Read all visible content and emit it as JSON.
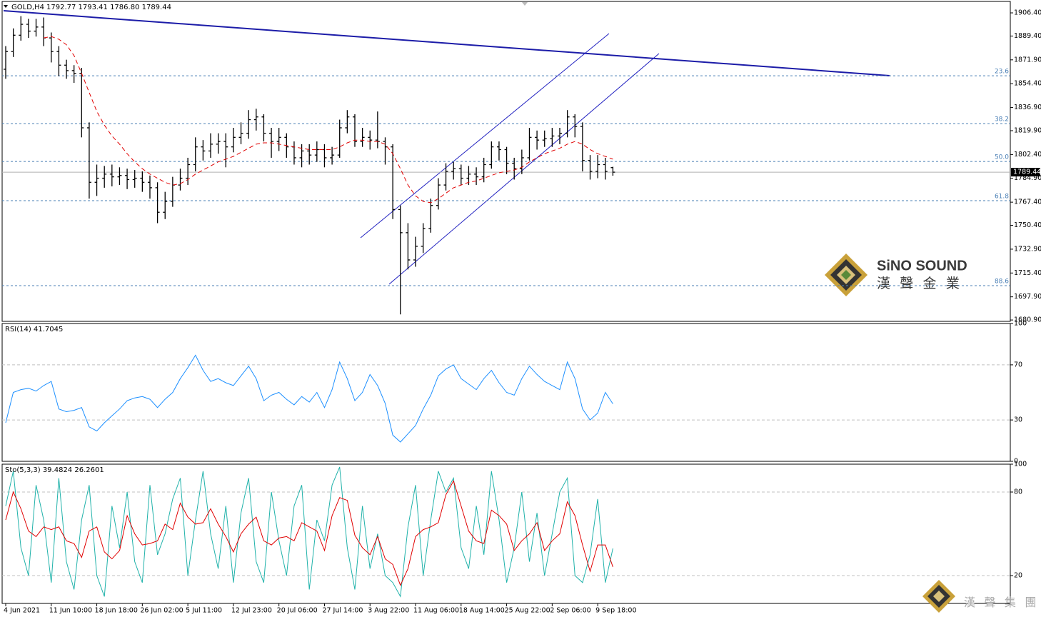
{
  "chart_data": [
    {
      "type": "candlestick",
      "title": "GOLD,H4",
      "ohlc_label": "1792.77 1793.41 1786.80 1789.44",
      "categories": [
        "4 Jun 2021",
        null,
        null,
        null,
        null,
        null,
        "11 Jun 10:00",
        null,
        null,
        null,
        null,
        null,
        "18 Jun 18:00",
        null,
        null,
        null,
        null,
        null,
        "26 Jun 02:00",
        null,
        null,
        null,
        null,
        null,
        "5 Jul 11:00",
        null,
        null,
        null,
        null,
        null,
        "12 Jul 23:00",
        null,
        null,
        null,
        null,
        null,
        "20 Jul 06:00",
        null,
        null,
        null,
        null,
        null,
        "27 Jul 14:00",
        null,
        null,
        null,
        null,
        null,
        "3 Aug 22:00",
        null,
        null,
        null,
        null,
        null,
        "11 Aug 06:00",
        null,
        null,
        null,
        null,
        null,
        "18 Aug 14:00",
        null,
        null,
        null,
        null,
        null,
        "25 Aug 22:00",
        null,
        null,
        null,
        null,
        null,
        "2 Sep 06:00",
        null,
        null,
        null,
        null,
        null,
        "9 Sep 18:00",
        null,
        null
      ],
      "open": [
        1865,
        1878,
        1890,
        1898,
        1893,
        1896,
        1888,
        1878,
        1868,
        1864,
        1862,
        1822,
        1782,
        1785,
        1788,
        1786,
        1787,
        1784,
        1785,
        1782,
        1778,
        1760,
        1768,
        1780,
        1785,
        1795,
        1808,
        1805,
        1810,
        1812,
        1808,
        1815,
        1818,
        1828,
        1830,
        1818,
        1812,
        1815,
        1808,
        1800,
        1805,
        1802,
        1806,
        1800,
        1802,
        1822,
        1830,
        1812,
        1815,
        1813,
        1812,
        1808,
        1762,
        1745,
        1725,
        1735,
        1748,
        1765,
        1780,
        1790,
        1792,
        1785,
        1788,
        1786,
        1795,
        1808,
        1806,
        1796,
        1792,
        1800,
        1815,
        1813,
        1814,
        1816,
        1818,
        1830,
        1823,
        1798,
        1790,
        1795,
        1792.77
      ],
      "high": [
        1882,
        1895,
        1904,
        1902,
        1902,
        1903,
        1892,
        1882,
        1872,
        1868,
        1866,
        1826,
        1795,
        1794,
        1795,
        1793,
        1792,
        1791,
        1790,
        1787,
        1782,
        1775,
        1786,
        1792,
        1800,
        1815,
        1813,
        1818,
        1818,
        1818,
        1822,
        1826,
        1835,
        1836,
        1832,
        1822,
        1822,
        1818,
        1812,
        1810,
        1810,
        1812,
        1810,
        1808,
        1828,
        1835,
        1832,
        1822,
        1820,
        1834,
        1815,
        1810,
        1765,
        1752,
        1742,
        1752,
        1770,
        1785,
        1796,
        1797,
        1795,
        1794,
        1793,
        1800,
        1812,
        1812,
        1808,
        1800,
        1806,
        1822,
        1820,
        1820,
        1822,
        1822,
        1835,
        1832,
        1826,
        1802,
        1802,
        1800,
        1793.41
      ],
      "low": [
        1858,
        1874,
        1886,
        1888,
        1889,
        1882,
        1870,
        1860,
        1858,
        1855,
        1815,
        1770,
        1772,
        1778,
        1779,
        1780,
        1777,
        1778,
        1775,
        1770,
        1752,
        1755,
        1764,
        1776,
        1780,
        1790,
        1798,
        1800,
        1803,
        1793,
        1804,
        1810,
        1814,
        1820,
        1812,
        1800,
        1805,
        1800,
        1795,
        1793,
        1795,
        1797,
        1793,
        1795,
        1800,
        1818,
        1808,
        1808,
        1806,
        1807,
        1795,
        1755,
        1685,
        1718,
        1720,
        1730,
        1745,
        1762,
        1776,
        1784,
        1780,
        1780,
        1780,
        1782,
        1792,
        1798,
        1788,
        1784,
        1788,
        1798,
        1806,
        1808,
        1808,
        1810,
        1815,
        1815,
        1790,
        1784,
        1785,
        1784,
        1786.8
      ],
      "close": [
        1878,
        1890,
        1898,
        1893,
        1896,
        1888,
        1878,
        1868,
        1864,
        1862,
        1822,
        1782,
        1785,
        1788,
        1786,
        1787,
        1784,
        1785,
        1782,
        1778,
        1760,
        1768,
        1780,
        1785,
        1795,
        1808,
        1805,
        1810,
        1812,
        1808,
        1815,
        1818,
        1828,
        1830,
        1818,
        1812,
        1815,
        1808,
        1800,
        1805,
        1802,
        1806,
        1800,
        1802,
        1822,
        1830,
        1812,
        1815,
        1813,
        1812,
        1808,
        1762,
        1745,
        1725,
        1735,
        1748,
        1765,
        1780,
        1790,
        1792,
        1785,
        1788,
        1786,
        1795,
        1808,
        1806,
        1796,
        1792,
        1800,
        1815,
        1813,
        1814,
        1816,
        1818,
        1830,
        1823,
        1798,
        1790,
        1795,
        1790,
        1789.44
      ],
      "color": "#000000",
      "ma": {
        "color": "#e00000",
        "values": [
          null,
          null,
          null,
          null,
          null,
          1888,
          1889,
          1887,
          1883,
          1875,
          1862,
          1848,
          1834,
          1824,
          1816,
          1810,
          1803,
          1797,
          1792,
          1788,
          1785,
          1782,
          1780,
          1781,
          1784,
          1788,
          1791,
          1794,
          1797,
          1799,
          1801,
          1804,
          1807,
          1810,
          1811,
          1811,
          1810,
          1809,
          1808,
          1807,
          1806,
          1806,
          1806,
          1806,
          1808,
          1811,
          1813,
          1813,
          1812,
          1812,
          1810,
          1803,
          1792,
          1780,
          1772,
          1768,
          1767,
          1770,
          1774,
          1778,
          1780,
          1782,
          1783,
          1785,
          1787,
          1789,
          1790,
          1791,
          1793,
          1797,
          1800,
          1803,
          1805,
          1807,
          1810,
          1812,
          1810,
          1806,
          1803,
          1801,
          1799
        ]
      },
      "levels": [
        {
          "label": "23.6",
          "value": 1860.2
        },
        {
          "label": "38.2",
          "value": 1825.1
        },
        {
          "label": "50.0",
          "value": 1797.3
        },
        {
          "label": "61.8",
          "value": 1768.5
        },
        {
          "label": "88.6",
          "value": 1706.1
        }
      ],
      "ylim": [
        1679.9,
        1914.8
      ],
      "yticks": [
        {
          "value": 1906.4,
          "label": "1906.40"
        },
        {
          "value": 1889.4,
          "label": "1889.40"
        },
        {
          "value": 1871.9,
          "label": "1871.90"
        },
        {
          "value": 1854.4,
          "label": "1854.40"
        },
        {
          "value": 1836.9,
          "label": "1836.90"
        },
        {
          "value": 1819.9,
          "label": "1819.90"
        },
        {
          "value": 1802.4,
          "label": "1802.40"
        },
        {
          "value": 1784.9,
          "label": "1784.90"
        },
        {
          "value": 1767.4,
          "label": "1767.40"
        },
        {
          "value": 1750.4,
          "label": "1750.40"
        },
        {
          "value": 1732.9,
          "label": "1732.90"
        },
        {
          "value": 1715.4,
          "label": "1715.40"
        },
        {
          "value": 1697.9,
          "label": "1697.90"
        },
        {
          "value": 1680.9,
          "label": "1680.90"
        }
      ],
      "grid": false,
      "watermark": {
        "brand": "SiNO SOUND",
        "subtitle": "漢 聲 金 業",
        "footer": "漢 聲 集 團"
      }
    },
    {
      "type": "line",
      "title": "RSI(14) 41.7045",
      "color": "#1e90ff",
      "values": [
        28,
        50,
        52,
        53,
        51,
        55,
        58,
        38,
        36,
        37,
        39,
        25,
        22,
        28,
        33,
        38,
        44,
        46,
        47,
        45,
        39,
        45,
        50,
        60,
        68,
        77,
        66,
        58,
        60,
        57,
        55,
        62,
        69,
        60,
        44,
        48,
        50,
        45,
        41,
        47,
        43,
        50,
        39,
        52,
        72,
        60,
        44,
        50,
        63,
        55,
        42,
        19,
        14,
        20,
        26,
        38,
        48,
        62,
        67,
        70,
        60,
        56,
        52,
        60,
        66,
        57,
        50,
        48,
        60,
        69,
        63,
        58,
        55,
        52,
        72,
        60,
        38,
        30,
        35,
        50,
        41.7045
      ],
      "ylim": [
        0,
        100
      ],
      "yticks": [
        100,
        70,
        30,
        0
      ],
      "grid": true
    },
    {
      "type": "line",
      "title": "Sto(5,3,3) 39.4824 26.2601",
      "series": [
        {
          "color": "#20b2aa",
          "values": [
            70,
            95,
            40,
            20,
            85,
            60,
            15,
            90,
            30,
            10,
            60,
            85,
            20,
            5,
            70,
            40,
            80,
            30,
            15,
            85,
            35,
            50,
            75,
            90,
            20,
            60,
            95,
            50,
            25,
            70,
            15,
            65,
            90,
            30,
            15,
            80,
            45,
            20,
            70,
            85,
            10,
            60,
            45,
            85,
            98,
            40,
            10,
            70,
            25,
            50,
            20,
            15,
            5,
            55,
            85,
            20,
            60,
            95,
            80,
            90,
            40,
            25,
            70,
            35,
            95,
            60,
            15,
            40,
            80,
            30,
            65,
            20,
            50,
            80,
            90,
            20,
            15,
            35,
            75,
            15,
            39.4824
          ]
        },
        {
          "color": "#e00000",
          "values": [
            60,
            80,
            68,
            52,
            48,
            55,
            53,
            55,
            45,
            43,
            33,
            52,
            55,
            37,
            32,
            38,
            63,
            50,
            42,
            43,
            45,
            57,
            53,
            72,
            62,
            57,
            58,
            68,
            57,
            48,
            37,
            50,
            57,
            62,
            45,
            42,
            47,
            48,
            45,
            58,
            55,
            52,
            38,
            63,
            76,
            74,
            49,
            40,
            35,
            48,
            32,
            28,
            13,
            25,
            48,
            53,
            55,
            58,
            78,
            88,
            70,
            52,
            45,
            43,
            67,
            63,
            57,
            38,
            45,
            50,
            58,
            38,
            45,
            50,
            73,
            63,
            42,
            23,
            42,
            42,
            26.2601
          ]
        }
      ],
      "ylim": [
        0,
        100
      ],
      "yticks": [
        100,
        80,
        20
      ],
      "grid": true
    }
  ]
}
